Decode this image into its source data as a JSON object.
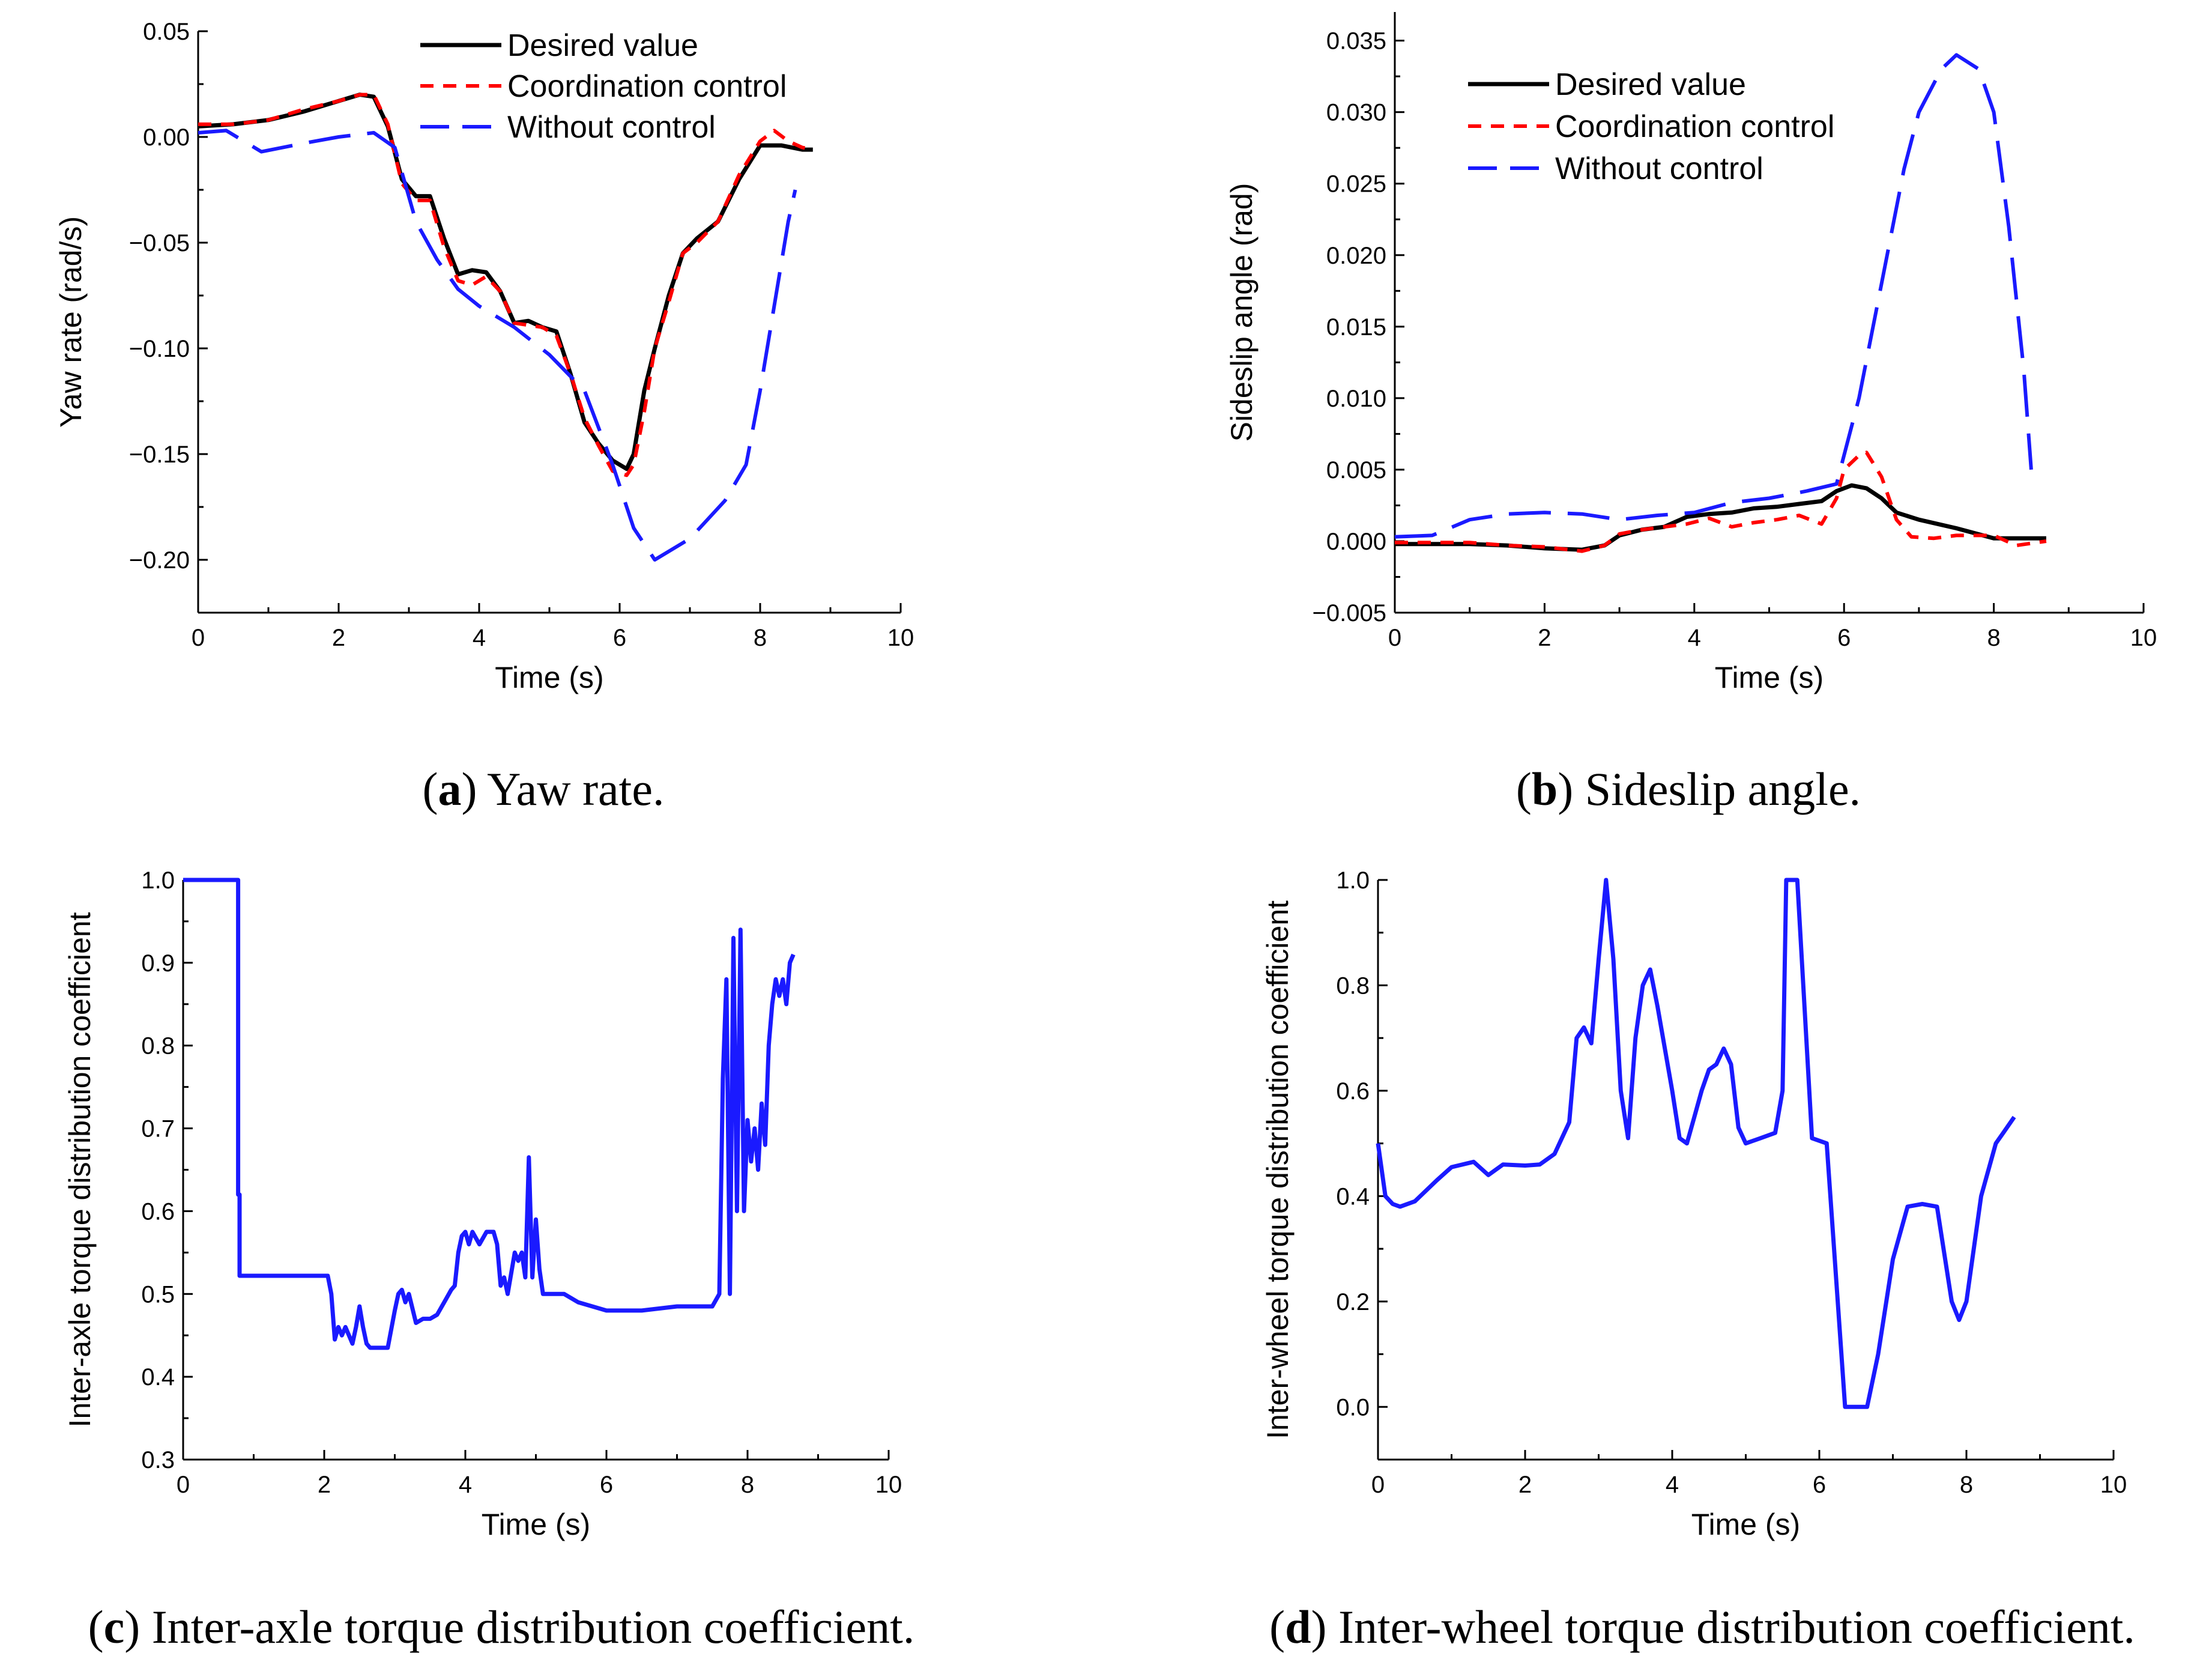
{
  "colors": {
    "desired": "#000000",
    "coordination": "#ff0000",
    "without": "#1a1aff",
    "coef": "#1a1aff"
  },
  "chart_data": [
    {
      "id": "a",
      "type": "line",
      "caption_letter": "a",
      "caption_text": " Yaw rate.",
      "xlabel": "Time (s)",
      "ylabel": "Yaw rate (rad/s)",
      "xlim": [
        0,
        10
      ],
      "ylim": [
        -0.225,
        0.05
      ],
      "xticks": [
        0,
        2,
        4,
        6,
        8,
        10
      ],
      "xtick_labels": [
        "0",
        "2",
        "4",
        "6",
        "8",
        "10"
      ],
      "yticks": [
        0.05,
        0.0,
        -0.05,
        -0.1,
        -0.15,
        -0.2
      ],
      "ytick_labels": [
        "0.05",
        "0.00",
        "−0.05",
        "−0.10",
        "−0.15",
        "−0.20"
      ],
      "legend_position": "top-right",
      "series": [
        {
          "name": "Desired value",
          "style": "solid",
          "color_key": "desired",
          "x": [
            0,
            0.5,
            1.0,
            1.5,
            2.0,
            2.3,
            2.5,
            2.7,
            2.9,
            3.1,
            3.3,
            3.5,
            3.7,
            3.9,
            4.1,
            4.3,
            4.5,
            4.7,
            4.9,
            5.1,
            5.3,
            5.5,
            5.7,
            5.9,
            6.1,
            6.2,
            6.35,
            6.5,
            6.7,
            6.9,
            7.1,
            7.4,
            7.7,
            8.0,
            8.3,
            8.6,
            8.75
          ],
          "y": [
            0.005,
            0.006,
            0.008,
            0.012,
            0.017,
            0.02,
            0.019,
            0.005,
            -0.02,
            -0.028,
            -0.028,
            -0.048,
            -0.065,
            -0.063,
            -0.064,
            -0.073,
            -0.088,
            -0.087,
            -0.09,
            -0.092,
            -0.112,
            -0.135,
            -0.145,
            -0.153,
            -0.157,
            -0.15,
            -0.12,
            -0.1,
            -0.075,
            -0.055,
            -0.048,
            -0.04,
            -0.02,
            -0.004,
            -0.004,
            -0.006,
            -0.006
          ]
        },
        {
          "name": "Coordination control",
          "style": "dashed",
          "color_key": "coordination",
          "x": [
            0,
            0.5,
            1.0,
            1.5,
            2.0,
            2.3,
            2.5,
            2.7,
            2.9,
            3.1,
            3.3,
            3.5,
            3.7,
            3.9,
            4.1,
            4.3,
            4.5,
            4.7,
            4.9,
            5.1,
            5.3,
            5.5,
            5.7,
            5.9,
            6.1,
            6.2,
            6.35,
            6.5,
            6.7,
            6.9,
            7.1,
            7.4,
            7.7,
            8.0,
            8.2,
            8.4,
            8.6,
            8.75
          ],
          "y": [
            0.006,
            0.006,
            0.008,
            0.013,
            0.017,
            0.02,
            0.02,
            0.006,
            -0.022,
            -0.03,
            -0.03,
            -0.052,
            -0.068,
            -0.07,
            -0.066,
            -0.073,
            -0.088,
            -0.089,
            -0.09,
            -0.094,
            -0.112,
            -0.133,
            -0.146,
            -0.158,
            -0.16,
            -0.155,
            -0.13,
            -0.1,
            -0.078,
            -0.055,
            -0.05,
            -0.04,
            -0.018,
            -0.002,
            0.003,
            -0.002,
            -0.005,
            -0.006
          ]
        },
        {
          "name": "Without control",
          "style": "longdash",
          "color_key": "without",
          "x": [
            0,
            0.4,
            0.9,
            1.5,
            2.0,
            2.5,
            2.8,
            3.1,
            3.4,
            3.7,
            4.0,
            4.5,
            5.0,
            5.5,
            5.9,
            6.2,
            6.5,
            7.0,
            7.5,
            7.8,
            8.0,
            8.2,
            8.4,
            8.5
          ],
          "y": [
            0.002,
            0.003,
            -0.007,
            -0.003,
            0.0,
            0.002,
            -0.005,
            -0.04,
            -0.058,
            -0.072,
            -0.08,
            -0.09,
            -0.103,
            -0.12,
            -0.155,
            -0.185,
            -0.2,
            -0.19,
            -0.172,
            -0.155,
            -0.12,
            -0.08,
            -0.04,
            -0.025
          ]
        }
      ]
    },
    {
      "id": "b",
      "type": "line",
      "caption_letter": "b",
      "caption_text": " Sideslip angle.",
      "xlabel": "Time (s)",
      "ylabel": "Sideslip angle (rad)",
      "xlim": [
        0,
        10
      ],
      "ylim": [
        -0.005,
        0.037
      ],
      "xticks": [
        0,
        2,
        4,
        6,
        8,
        10
      ],
      "xtick_labels": [
        "0",
        "2",
        "4",
        "6",
        "8",
        "10"
      ],
      "yticks": [
        0.035,
        0.03,
        0.025,
        0.02,
        0.015,
        0.01,
        0.005,
        0.0,
        -0.005
      ],
      "ytick_labels": [
        "0.035",
        "0.030",
        "0.025",
        "0.020",
        "0.015",
        "0.010",
        "0.005",
        "0.000",
        "−0.005"
      ],
      "legend_position": "top-left",
      "series": [
        {
          "name": "Desired value",
          "style": "solid",
          "color_key": "desired",
          "x": [
            0,
            0.5,
            1.0,
            1.5,
            2.0,
            2.5,
            2.8,
            3.0,
            3.3,
            3.6,
            3.9,
            4.2,
            4.5,
            4.8,
            5.1,
            5.4,
            5.7,
            5.9,
            6.1,
            6.3,
            6.5,
            6.7,
            7.0,
            7.5,
            8.0,
            8.3,
            8.7
          ],
          "y": [
            -0.0002,
            -0.0002,
            -0.0002,
            -0.0003,
            -0.0005,
            -0.0006,
            -0.0003,
            0.0004,
            0.0008,
            0.001,
            0.0017,
            0.0019,
            0.002,
            0.0023,
            0.0024,
            0.0026,
            0.0028,
            0.0035,
            0.0039,
            0.0037,
            0.003,
            0.002,
            0.0015,
            0.0009,
            0.0002,
            0.0002,
            0.0002
          ]
        },
        {
          "name": "Coordination control",
          "style": "dashed",
          "color_key": "coordination",
          "x": [
            0,
            0.5,
            1.0,
            1.5,
            2.0,
            2.5,
            2.8,
            3.0,
            3.3,
            3.6,
            3.9,
            4.2,
            4.5,
            4.8,
            5.1,
            5.4,
            5.7,
            5.9,
            6.0,
            6.2,
            6.3,
            6.5,
            6.7,
            6.9,
            7.2,
            7.5,
            8.0,
            8.3,
            8.7
          ],
          "y": [
            -0.0001,
            -0.0001,
            -0.0001,
            -0.0003,
            -0.0004,
            -0.0007,
            -0.0003,
            0.0005,
            0.0008,
            0.001,
            0.0012,
            0.0016,
            0.001,
            0.0013,
            0.0015,
            0.0018,
            0.0012,
            0.003,
            0.005,
            0.006,
            0.0062,
            0.0045,
            0.0015,
            0.0003,
            0.0002,
            0.0004,
            0.0004,
            -0.0003,
            0.0
          ]
        },
        {
          "name": "Without control",
          "style": "longdash",
          "color_key": "without",
          "x": [
            0,
            0.5,
            1.0,
            1.5,
            2.0,
            2.5,
            3.0,
            3.5,
            4.0,
            4.5,
            5.0,
            5.5,
            5.9,
            6.2,
            6.5,
            6.8,
            7.0,
            7.3,
            7.5,
            7.8,
            8.0,
            8.2,
            8.4,
            8.5
          ],
          "y": [
            0.0003,
            0.0004,
            0.0015,
            0.0019,
            0.002,
            0.0019,
            0.0015,
            0.0018,
            0.002,
            0.0027,
            0.003,
            0.0035,
            0.004,
            0.01,
            0.018,
            0.026,
            0.03,
            0.033,
            0.034,
            0.033,
            0.03,
            0.022,
            0.012,
            0.005
          ]
        }
      ]
    },
    {
      "id": "c",
      "type": "line",
      "caption_letter": "c",
      "caption_text": " Inter-axle torque distribution coefficient.",
      "xlabel": "Time (s)",
      "ylabel": "Inter-axle torque distribution coefficient",
      "xlim": [
        0,
        10
      ],
      "ylim": [
        0.3,
        1.0
      ],
      "xticks": [
        0,
        2,
        4,
        6,
        8,
        10
      ],
      "xtick_labels": [
        "0",
        "2",
        "4",
        "6",
        "8",
        "10"
      ],
      "yticks": [
        1.0,
        0.9,
        0.8,
        0.7,
        0.6,
        0.5,
        0.4,
        0.3
      ],
      "ytick_labels": [
        "1.0",
        "0.9",
        "0.8",
        "0.7",
        "0.6",
        "0.5",
        "0.4",
        "0.3"
      ],
      "legend_position": "none",
      "series": [
        {
          "name": "Inter-axle torque distribution coefficient",
          "style": "solid",
          "color_key": "coef",
          "x": [
            0,
            0.78,
            0.78,
            0.8,
            0.8,
            2.05,
            2.1,
            2.15,
            2.2,
            2.25,
            2.3,
            2.4,
            2.45,
            2.5,
            2.55,
            2.6,
            2.65,
            2.7,
            2.8,
            2.9,
            3.0,
            3.05,
            3.1,
            3.15,
            3.2,
            3.3,
            3.4,
            3.5,
            3.6,
            3.7,
            3.8,
            3.85,
            3.9,
            3.95,
            4.0,
            4.05,
            4.1,
            4.2,
            4.3,
            4.4,
            4.45,
            4.5,
            4.55,
            4.6,
            4.7,
            4.75,
            4.8,
            4.85,
            4.9,
            4.95,
            5.0,
            5.05,
            5.1,
            5.2,
            5.4,
            5.6,
            5.8,
            6.0,
            6.5,
            7.0,
            7.5,
            7.6,
            7.65,
            7.7,
            7.75,
            7.8,
            7.85,
            7.9,
            7.95,
            8.0,
            8.05,
            8.1,
            8.15,
            8.2,
            8.25,
            8.3,
            8.35,
            8.4,
            8.45,
            8.5,
            8.55,
            8.6,
            8.65
          ],
          "y": [
            1.0,
            1.0,
            0.62,
            0.62,
            0.522,
            0.522,
            0.5,
            0.445,
            0.46,
            0.45,
            0.46,
            0.44,
            0.46,
            0.485,
            0.46,
            0.44,
            0.435,
            0.435,
            0.435,
            0.435,
            0.48,
            0.5,
            0.505,
            0.49,
            0.5,
            0.465,
            0.47,
            0.47,
            0.475,
            0.49,
            0.505,
            0.51,
            0.55,
            0.57,
            0.575,
            0.56,
            0.575,
            0.56,
            0.575,
            0.575,
            0.56,
            0.51,
            0.52,
            0.5,
            0.55,
            0.54,
            0.55,
            0.52,
            0.665,
            0.52,
            0.59,
            0.53,
            0.5,
            0.5,
            0.5,
            0.49,
            0.485,
            0.48,
            0.48,
            0.485,
            0.485,
            0.5,
            0.76,
            0.88,
            0.5,
            0.93,
            0.6,
            0.94,
            0.6,
            0.71,
            0.66,
            0.7,
            0.65,
            0.73,
            0.68,
            0.8,
            0.85,
            0.88,
            0.86,
            0.88,
            0.85,
            0.9,
            0.91
          ]
        }
      ]
    },
    {
      "id": "d",
      "type": "line",
      "caption_letter": "d",
      "caption_text": " Inter-wheel torque distribution coefficient.",
      "xlabel": "Time (s)",
      "ylabel": "Inter-wheel torque distribution coefficient",
      "xlim": [
        0,
        10
      ],
      "ylim": [
        -0.1,
        1.0
      ],
      "xticks": [
        0,
        2,
        4,
        6,
        8,
        10
      ],
      "xtick_labels": [
        "0",
        "2",
        "4",
        "6",
        "8",
        "10"
      ],
      "yticks": [
        1.0,
        0.8,
        0.6,
        0.4,
        0.2,
        0.0
      ],
      "ytick_labels": [
        "1.0",
        "0.8",
        "0.6",
        "0.4",
        "0.2",
        "0.0"
      ],
      "legend_position": "none",
      "series": [
        {
          "name": "Inter-wheel torque distribution coefficient",
          "style": "solid",
          "color_key": "coef",
          "x": [
            0,
            0.1,
            0.2,
            0.3,
            0.5,
            0.8,
            1.0,
            1.3,
            1.5,
            1.7,
            2.0,
            2.2,
            2.4,
            2.6,
            2.7,
            2.8,
            2.9,
            3.0,
            3.1,
            3.2,
            3.3,
            3.4,
            3.5,
            3.6,
            3.7,
            3.8,
            4.0,
            4.1,
            4.2,
            4.3,
            4.4,
            4.5,
            4.6,
            4.7,
            4.8,
            4.9,
            5.0,
            5.2,
            5.4,
            5.5,
            5.55,
            5.7,
            5.9,
            6.1,
            6.3,
            6.35,
            6.5,
            6.65,
            6.8,
            7.0,
            7.2,
            7.4,
            7.6,
            7.8,
            7.9,
            8.0,
            8.2,
            8.4,
            8.5,
            8.65
          ],
          "y": [
            0.5,
            0.4,
            0.385,
            0.38,
            0.39,
            0.43,
            0.455,
            0.465,
            0.44,
            0.46,
            0.458,
            0.46,
            0.48,
            0.54,
            0.7,
            0.72,
            0.69,
            0.85,
            1.0,
            0.85,
            0.6,
            0.51,
            0.7,
            0.8,
            0.83,
            0.76,
            0.6,
            0.51,
            0.5,
            0.55,
            0.6,
            0.64,
            0.65,
            0.68,
            0.65,
            0.53,
            0.5,
            0.51,
            0.52,
            0.6,
            1.0,
            1.0,
            0.51,
            0.5,
            0.1,
            0.0,
            0.0,
            0.0,
            0.1,
            0.28,
            0.38,
            0.385,
            0.38,
            0.2,
            0.165,
            0.2,
            0.4,
            0.5,
            0.52,
            0.55
          ]
        }
      ]
    }
  ]
}
